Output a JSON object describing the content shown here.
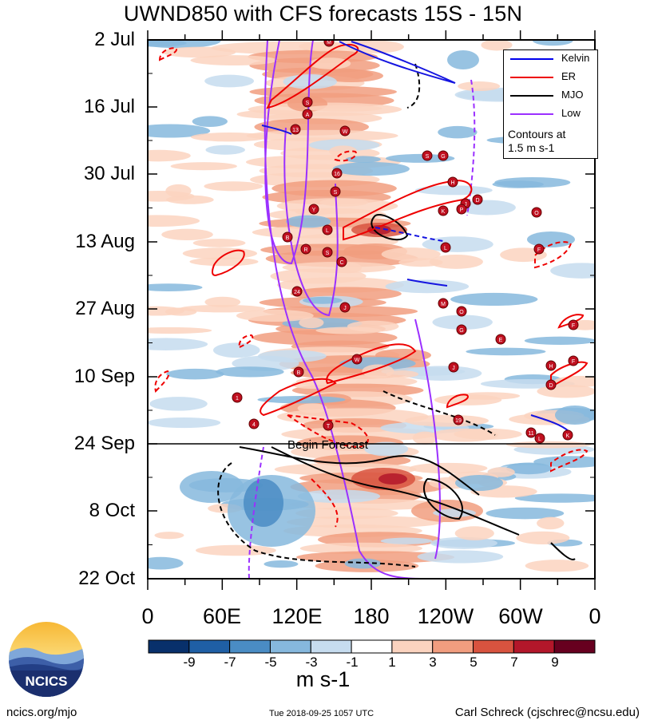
{
  "title": "UWND850 with CFS forecasts  15S - 15N",
  "y_labels": [
    "2 Jul",
    "16 Jul",
    "30 Jul",
    "13 Aug",
    "27 Aug",
    "10 Sep",
    "24 Sep",
    "8 Oct",
    "22 Oct"
  ],
  "x_labels": [
    "0",
    "60E",
    "120E",
    "180",
    "120W",
    "60W",
    "0"
  ],
  "legend": {
    "items": [
      {
        "label": "Kelvin",
        "color": "#0000ee"
      },
      {
        "label": "ER",
        "color": "#ee0000"
      },
      {
        "label": "MJO",
        "color": "#000000"
      },
      {
        "label": "Low",
        "color": "#9b30ff"
      }
    ],
    "note_line1": "Contours at",
    "note_line2": "1.5 m s-1"
  },
  "forecast_label": "Begin Forecast",
  "colorbar": {
    "labels": [
      "-9",
      "-7",
      "-5",
      "-3",
      "-1",
      "1",
      "3",
      "5",
      "7",
      "9"
    ],
    "colors": [
      "#08306b",
      "#1f5fa5",
      "#4a8cc4",
      "#86b8dd",
      "#c6dcef",
      "#ffffff",
      "#fbd3bf",
      "#f19d7f",
      "#d8533f",
      "#b3172a",
      "#67001f"
    ],
    "units": "m s-1"
  },
  "logo_text": "NCICS",
  "footer": {
    "left": "ncics.org/mjo",
    "middle": "Tue 2018-09-25 1057 UTC",
    "right": "Carl Schreck (cjschrec@ncsu.edu)"
  },
  "storm_labels": [
    "M",
    "S",
    "A",
    "13",
    "W",
    "16",
    "S",
    "Y",
    "L",
    "B",
    "R",
    "S",
    "C",
    "24",
    "J",
    "B",
    "W",
    "S",
    "G",
    "H",
    "K",
    "J",
    "D",
    "L",
    "M",
    "O",
    "G",
    "E",
    "F",
    "J",
    "H",
    "F",
    "19",
    "11",
    "L",
    "K",
    "T",
    "1",
    "4",
    "F",
    "D",
    "P",
    "O"
  ],
  "chart_data": {
    "type": "heatmap",
    "title": "UWND850 with CFS forecasts  15S - 15N",
    "x_axis": [
      "0",
      "60E",
      "120E",
      "180",
      "120W",
      "60W",
      "0"
    ],
    "x_range_deg_east": [
      0,
      360
    ],
    "y_axis": [
      "2 Jul",
      "16 Jul",
      "30 Jul",
      "13 Aug",
      "27 Aug",
      "10 Sep",
      "24 Sep",
      "8 Oct",
      "22 Oct"
    ],
    "y_range": [
      "2 Jul",
      "22 Oct"
    ],
    "forecast_begin": "24 Sep",
    "levels": [
      -9,
      -7,
      -5,
      -3,
      -1,
      1,
      3,
      5,
      7,
      9
    ],
    "units": "m s-1",
    "contour_interval": "1.5 m s-1",
    "series": [
      {
        "name": "Kelvin"
      },
      {
        "name": "ER"
      },
      {
        "name": "MJO"
      },
      {
        "name": "Low"
      }
    ]
  }
}
